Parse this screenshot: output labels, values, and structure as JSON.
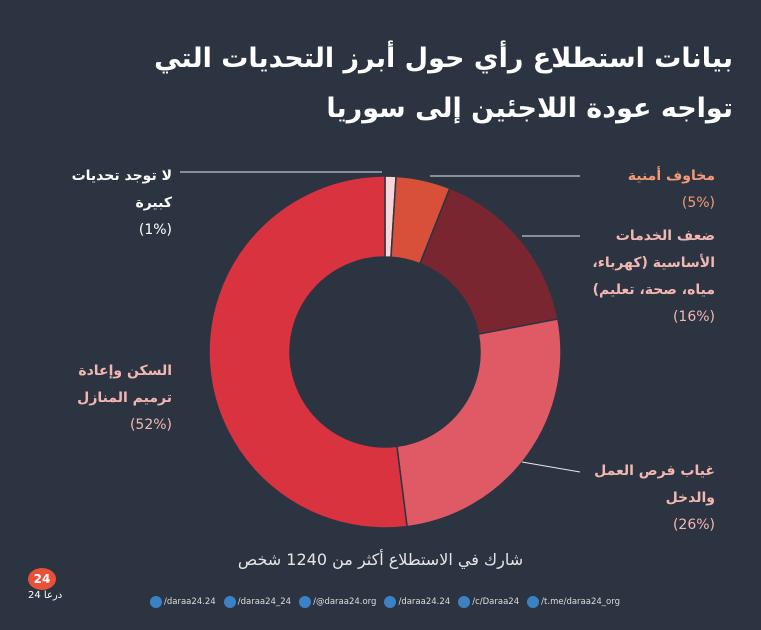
{
  "chart_data": {
    "type": "donut",
    "title": "بيانات استطلاع رأي حول أبرز التحديات التي تواجه عودة اللاجئين إلى سوريا",
    "categories": [
      "لا توجد تحديات كبيرة",
      "مخاوف أمنية",
      "ضعف الخدمات الأساسية (كهرباء، مياه، صحة، تعليم)",
      "غياب فرص العمل والدخل",
      "السكن وإعادة ترميم المنازل"
    ],
    "values": [
      1,
      5,
      16,
      26,
      52
    ],
    "value_labels": [
      "(1%)",
      "(5%)",
      "(16%)",
      "(26%)",
      "(52%)"
    ],
    "colors": [
      "#f6d6d8",
      "#d9503a",
      "#7a2630",
      "#e05a66",
      "#d93340"
    ],
    "label_colors": [
      "#ffffff",
      "#f39a78",
      "#f3b7b2",
      "#f3b7b2",
      "#f3b7b2"
    ],
    "note": "شارك في الاستطلاع أكثر من 1240 شخص"
  },
  "footer": {
    "logo": "24",
    "logo_name": "درعا 24",
    "handles": [
      "/daraa24.24",
      "/daraa24_24",
      "/@daraa24.org",
      "/daraa24.24",
      "/c/Daraa24",
      "/t.me/daraa24_org"
    ]
  }
}
